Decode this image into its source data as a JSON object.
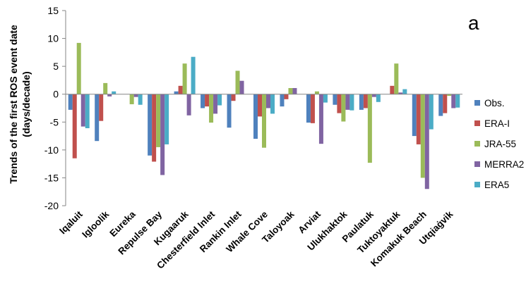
{
  "chart_data": {
    "type": "bar",
    "ylabel_lines": [
      "Trends of the first ROS event date",
      "(days/decade)"
    ],
    "panel_letter": "a",
    "ylim": [
      -20,
      15
    ],
    "yticks": [
      15,
      10,
      5,
      0,
      -5,
      -10,
      -15,
      -20
    ],
    "legend_position": "right",
    "categories": [
      "Iqaluit",
      "Igloolik",
      "Eureka",
      "Repulse Bay",
      "Kugaaruk",
      "Chesterfield Inlet",
      "Rankin Inlet",
      "Whale Cove",
      "Taloyoak",
      "Arviat",
      "Ulukhaktok",
      "Paulatuk",
      "Tuktoyaktuk",
      "Komakuk Beach",
      "Utqiaġvik"
    ],
    "series": [
      {
        "name": "Obs.",
        "color": "#4F81BD",
        "values": [
          -2.8,
          -8.4,
          0,
          -11.0,
          0.5,
          -2.5,
          -6.0,
          -8.0,
          -2.2,
          -5.1,
          -1.9,
          -2.8,
          0,
          -7.5,
          -3.9
        ]
      },
      {
        "name": "ERA-I",
        "color": "#C0504D",
        "values": [
          -11.5,
          -4.8,
          0,
          -12.1,
          1.5,
          -2.2,
          -1.2,
          -4.0,
          -0.9,
          -5.2,
          -3.4,
          -2.5,
          1.5,
          -9.0,
          -3.4
        ]
      },
      {
        "name": "JRA-55",
        "color": "#9BBB59",
        "values": [
          9.2,
          2.0,
          -1.8,
          -9.5,
          5.5,
          -5.1,
          4.2,
          -9.6,
          1.1,
          0.5,
          -4.9,
          -12.3,
          5.5,
          -15.0,
          -0.3
        ]
      },
      {
        "name": "MERRA2",
        "color": "#8064A2",
        "values": [
          -5.8,
          -0.4,
          -0.5,
          -14.5,
          -3.8,
          -3.5,
          2.4,
          -2.5,
          1.1,
          -8.9,
          -2.8,
          -0.5,
          0.3,
          -17.0,
          -2.5
        ]
      },
      {
        "name": "ERA5",
        "color": "#4BACC6",
        "values": [
          -6.1,
          0.5,
          -1.9,
          -9.0,
          6.7,
          -2.0,
          0,
          -3.5,
          0,
          -1.5,
          -2.9,
          -1.4,
          0.9,
          -6.3,
          -2.4
        ]
      }
    ]
  }
}
